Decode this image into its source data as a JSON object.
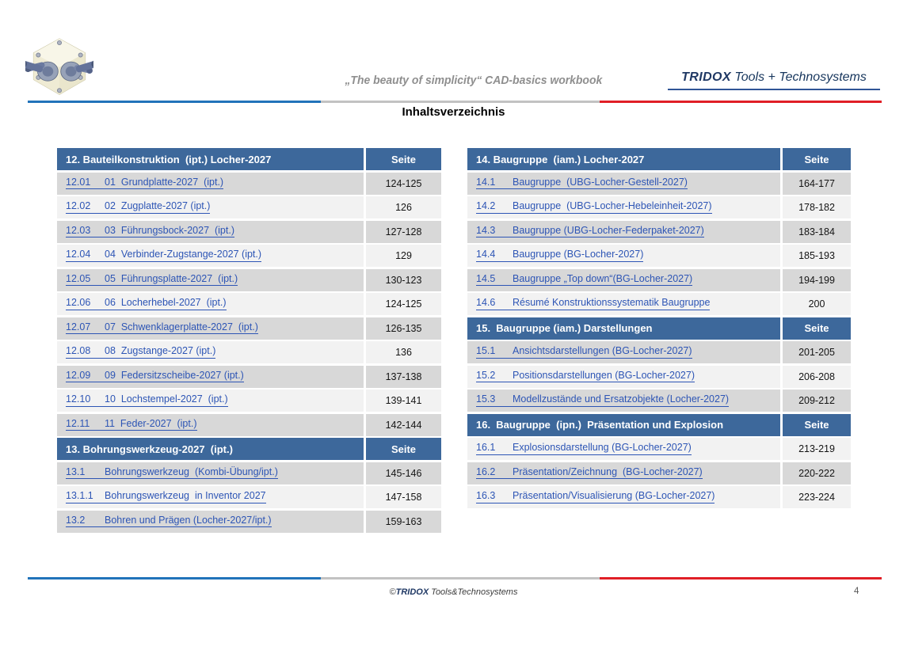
{
  "header": {
    "tagline": "„The beauty of simplicity“ CAD-basics workbook",
    "brand_bold": "TRIDOX",
    "brand_rest": " Tools + Technosystems",
    "logo_icon": "cad-assembly-isometric-model"
  },
  "title": "Inhaltsverzeichnis",
  "toc": {
    "left": [
      {
        "title": "12. Bauteilkonstruktion  (ipt.) Locher-2027",
        "page_label": "Seite",
        "band_start": "dark",
        "rows": [
          {
            "num": "12.01",
            "label": "01  Grundplatte-2027  (ipt.)",
            "pages": "124-125"
          },
          {
            "num": "12.02",
            "label": "02  Zugplatte-2027 (ipt.)",
            "pages": "126"
          },
          {
            "num": "12.03",
            "label": "03  Führungsbock-2027  (ipt.)",
            "pages": "127-128"
          },
          {
            "num": "12.04",
            "label": "04  Verbinder-Zugstange-2027 (ipt.)",
            "pages": "129"
          },
          {
            "num": "12.05",
            "label": "05  Führungsplatte-2027  (ipt.)",
            "pages": "130-123"
          },
          {
            "num": "12.06",
            "label": "06  Locherhebel-2027  (ipt.)",
            "pages": "124-125"
          },
          {
            "num": "12.07",
            "label": "07  Schwenklagerplatte-2027  (ipt.)",
            "pages": "126-135"
          },
          {
            "num": "12.08",
            "label": "08  Zugstange-2027 (ipt.)",
            "pages": "136"
          },
          {
            "num": "12.09",
            "label": "09  Federsitzscheibe-2027 (ipt.)",
            "pages": "137-138"
          },
          {
            "num": "12.10",
            "label": "10  Lochstempel-2027  (ipt.)",
            "pages": "139-141"
          },
          {
            "num": "12.11",
            "label": "11  Feder-2027  (ipt.)",
            "pages": "142-144"
          }
        ]
      },
      {
        "title": "13. Bohrungswerkzeug-2027  (ipt.)",
        "page_label": "Seite",
        "band_start": "dark",
        "rows": [
          {
            "num": "13.1",
            "label": "Bohrungswerkzeug  (Kombi-Übung/ipt.)",
            "pages": "145-146"
          },
          {
            "num": "13.1.1",
            "label": "Bohrungswerkzeug  in Inventor 2027",
            "pages": "147-158"
          },
          {
            "num": "13.2",
            "label": "Bohren und Prägen (Locher-2027/ipt.)",
            "pages": "159-163"
          }
        ]
      }
    ],
    "right": [
      {
        "title": "14. Baugruppe  (iam.) Locher-2027",
        "page_label": "Seite",
        "band_start": "dark",
        "rows": [
          {
            "num": "14.1",
            "label": "Baugruppe  (UBG-Locher-Gestell-2027)",
            "pages": "164-177"
          },
          {
            "num": "14.2",
            "label": "Baugruppe  (UBG-Locher-Hebeleinheit-2027)",
            "pages": "178-182"
          },
          {
            "num": "14.3",
            "label": "Baugruppe (UBG-Locher-Federpaket-2027)",
            "pages": "183-184"
          },
          {
            "num": "14.4",
            "label": "Baugruppe (BG-Locher-2027)",
            "pages": "185-193"
          },
          {
            "num": "14.5",
            "label": "Baugruppe „Top down“(BG-Locher-2027)",
            "pages": "194-199"
          },
          {
            "num": "14.6",
            "label": "Résumé Konstruktionssystematik Baugruppe",
            "pages": "200"
          }
        ]
      },
      {
        "title": "15.  Baugruppe (iam.) Darstellungen",
        "page_label": "Seite",
        "band_start": "dark",
        "rows": [
          {
            "num": "15.1",
            "label": "Ansichtsdarstellungen (BG-Locher-2027)",
            "pages": "201-205"
          },
          {
            "num": "15.2",
            "label": "Positionsdarstellungen (BG-Locher-2027)",
            "pages": "206-208"
          },
          {
            "num": "15.3",
            "label": "Modellzustände und Ersatzobjekte (Locher-2027)",
            "pages": "209-212"
          }
        ]
      },
      {
        "title": "16.  Baugruppe  (ipn.)  Präsentation und Explosion",
        "page_label": "Seite",
        "band_start": "light",
        "rows": [
          {
            "num": "16.1",
            "label": "Explosionsdarstellung (BG-Locher-2027)",
            "pages": "213-219"
          },
          {
            "num": "16.2",
            "label": "Präsentation/Zeichnung  (BG-Locher-2027)",
            "pages": "220-222"
          },
          {
            "num": "16.3",
            "label": "Präsentation/Visualisierung (BG-Locher-2027)",
            "pages": "223-224"
          }
        ]
      }
    ]
  },
  "footer": {
    "copyright_prefix": "©",
    "brand": "TRIDOX",
    "rest": " Tools&Technosystems",
    "page_number": "4"
  },
  "colors": {
    "table_header_blue": "#3d689b",
    "row_dark": "#d8d8d8",
    "row_light": "#f2f2f2",
    "link_blue": "#2d55b5",
    "rule_blue": "#2173ba",
    "rule_gray": "#c2c2c2",
    "rule_red": "#e01f26",
    "brand_navy": "#1f3864"
  }
}
